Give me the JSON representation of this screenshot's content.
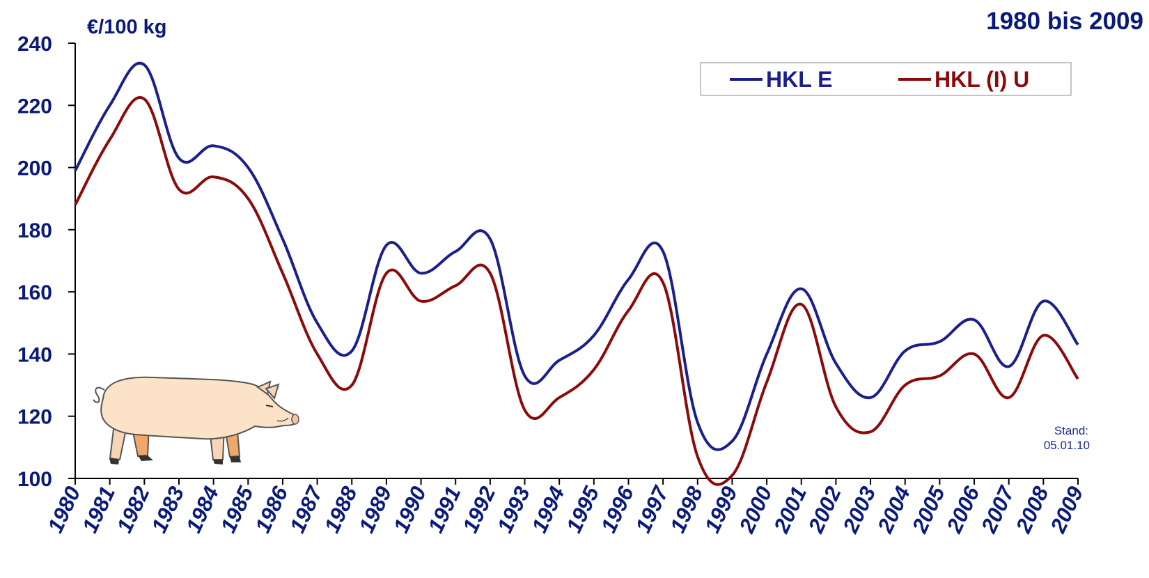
{
  "chart_data": {
    "type": "line",
    "title": "1980 bis 2009",
    "ylabel": "€/100 kg",
    "ylim": [
      100,
      240
    ],
    "yticks": [
      "100",
      "120",
      "140",
      "160",
      "180",
      "200",
      "220",
      "240"
    ],
    "xticks": [
      "1980",
      "1981",
      "1982",
      "1983",
      "1984",
      "1985",
      "1986",
      "1987",
      "1988",
      "1989",
      "1990",
      "1991",
      "1992",
      "1993",
      "1994",
      "1995",
      "1996",
      "1997",
      "1998",
      "1999",
      "2000",
      "2001",
      "2002",
      "2003",
      "2004",
      "2005",
      "2006",
      "2007",
      "2008",
      "2009"
    ],
    "x": [
      1980,
      1981,
      1982,
      1983,
      1984,
      1985,
      1986,
      1987,
      1988,
      1989,
      1990,
      1991,
      1992,
      1993,
      1994,
      1995,
      1996,
      1997,
      1998,
      1999,
      2000,
      2001,
      2002,
      2003,
      2004,
      2005,
      2006,
      2007,
      2008,
      2009
    ],
    "legend": "top-right",
    "grid": false,
    "series": [
      {
        "name": "HKL E",
        "color": "#1a1f8c",
        "values": [
          199,
          220,
          233,
          203,
          207,
          200,
          177,
          150,
          141,
          175,
          166,
          173,
          177,
          133,
          138,
          146,
          164,
          173,
          118,
          112,
          140,
          161,
          137,
          126,
          141,
          144,
          151,
          136,
          157,
          143
        ]
      },
      {
        "name": "HKL (I) U",
        "color": "#8b0a0a",
        "values": [
          188,
          209,
          222,
          193,
          197,
          190,
          166,
          140,
          130,
          166,
          157,
          162,
          166,
          122,
          126,
          135,
          154,
          163,
          107,
          101,
          131,
          156,
          123,
          115,
          130,
          133,
          140,
          126,
          146,
          132
        ]
      }
    ]
  },
  "note": {
    "stand_label": "Stand:",
    "stand_date": "05.01.10"
  },
  "decoration": {
    "pig": "pig-illustration"
  }
}
